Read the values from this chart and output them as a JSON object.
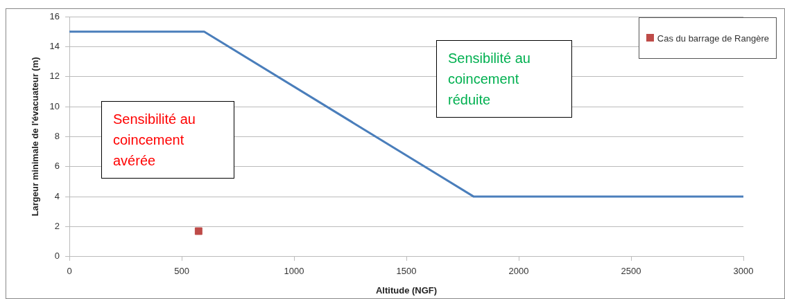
{
  "chart_data": {
    "type": "line",
    "xlabel": "Altitude (NGF)",
    "ylabel": "Largeur minimale de l'évacuateur (m)",
    "xlim": [
      0,
      3000
    ],
    "xticks": [
      0,
      500,
      1000,
      1500,
      2000,
      2500,
      3000
    ],
    "ylim": [
      0,
      16
    ],
    "yticks": [
      0,
      2,
      4,
      6,
      8,
      10,
      12,
      14,
      16
    ],
    "grid": "y",
    "legend": "top right",
    "series": [
      {
        "color": "#4a7ebb",
        "x": [
          0,
          600,
          1800,
          3000
        ],
        "values": [
          15,
          15,
          4,
          4
        ]
      },
      {
        "type": "scatter",
        "name": "Cas du barrage de Rangère",
        "color": "#be4b48",
        "marker": "square",
        "x": [
          575
        ],
        "values": [
          1.7
        ]
      }
    ],
    "annotations": [
      "Sensibilité au coincement avérée",
      "Sensibilité au coincement réduite"
    ]
  }
}
